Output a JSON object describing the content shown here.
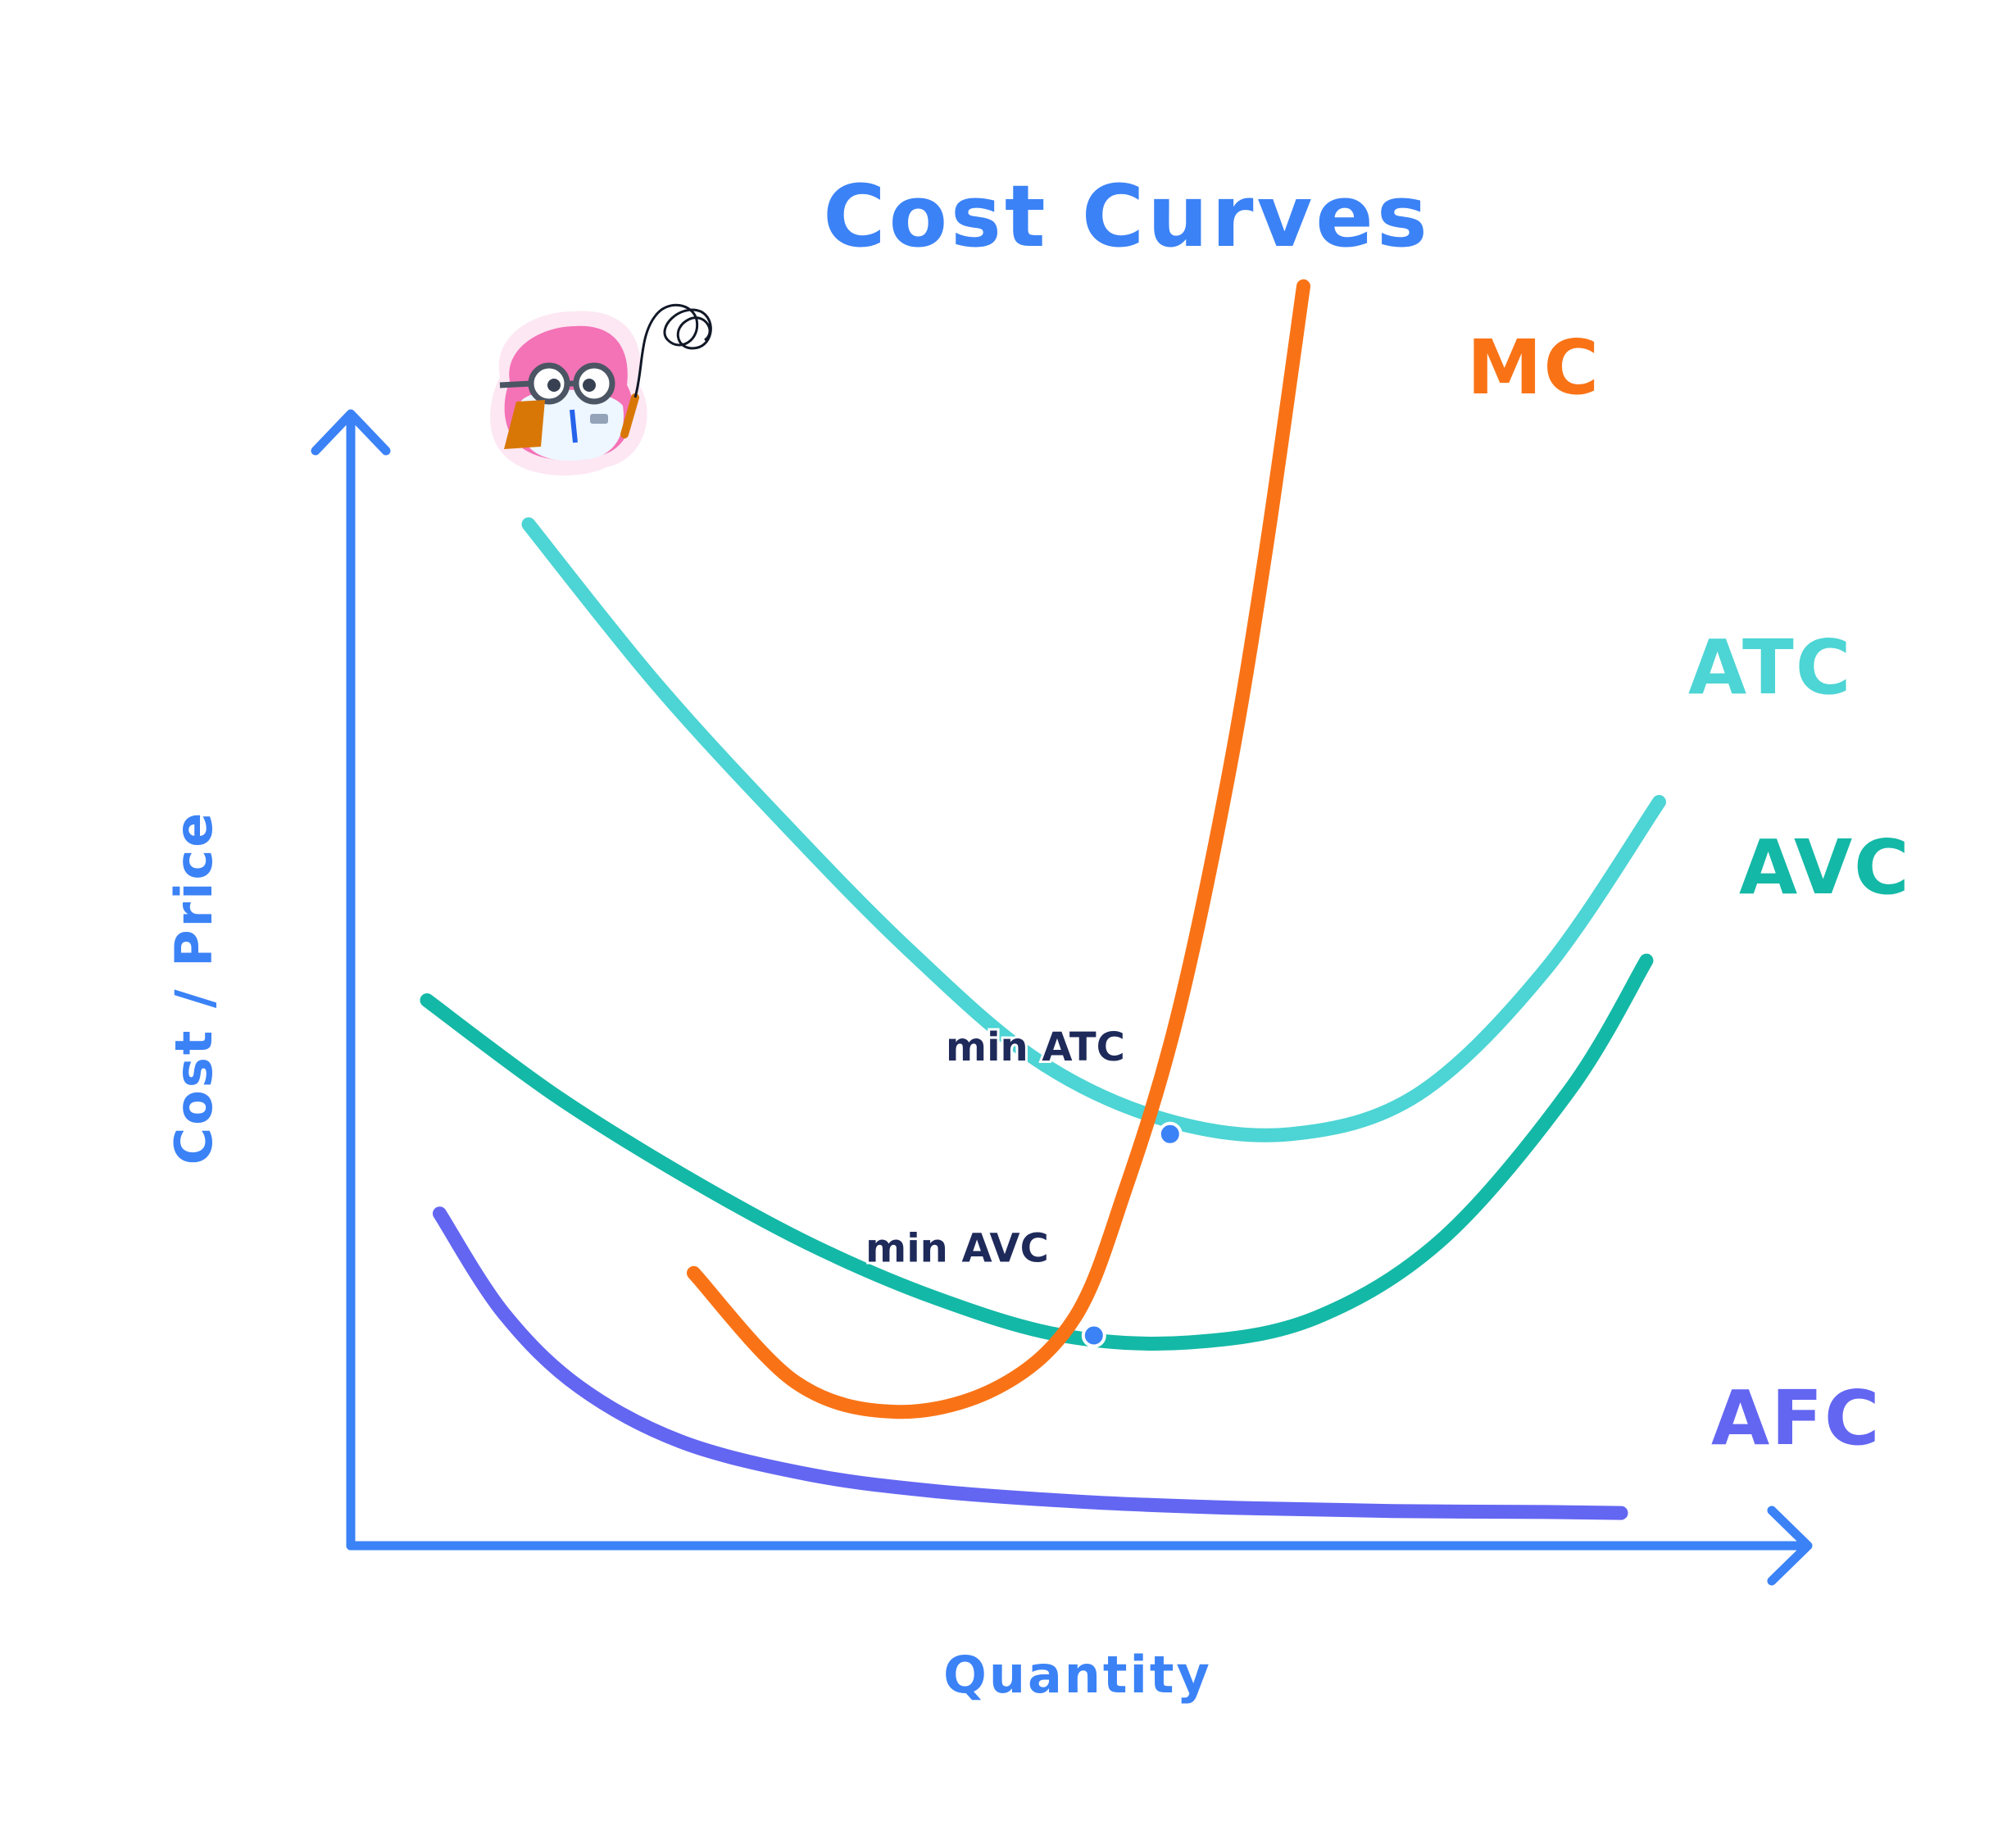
{
  "chart_data": {
    "type": "line",
    "title": "Cost Curves",
    "xlabel": "Quantity",
    "ylabel": "Cost / Price",
    "xlim": [
      0,
      10
    ],
    "ylim": [
      0,
      10
    ],
    "grid": false,
    "legend": "none",
    "colors": {
      "axis": "#3b82f6",
      "title": "#3b82f6",
      "annotation": "#1e2a5a",
      "point": "#3b82f6"
    },
    "series": [
      {
        "name": "MC",
        "color": "#f97316",
        "x": [
          2.7,
          3.5,
          4.3,
          5.1,
          5.7,
          6.1,
          6.5,
          6.9,
          7.2,
          7.5
        ],
        "y": [
          2.75,
          1.65,
          1.35,
          1.6,
          2.3,
          3.6,
          5.3,
          7.7,
          10.0,
          12.7
        ]
      },
      {
        "name": "ATC",
        "color": "#4dd4d4",
        "x": [
          1.4,
          2.4,
          3.4,
          4.4,
          5.4,
          6.4,
          7.4,
          8.4,
          9.4,
          10.3
        ],
        "y": [
          10.3,
          8.7,
          7.3,
          6.0,
          4.9,
          4.3,
          4.15,
          4.55,
          5.8,
          7.5
        ]
      },
      {
        "name": "AVC",
        "color": "#14b8a6",
        "x": [
          0.6,
          1.6,
          2.6,
          3.6,
          4.6,
          5.6,
          6.6,
          7.6,
          8.6,
          9.6,
          10.2
        ],
        "y": [
          5.5,
          4.55,
          3.75,
          3.05,
          2.5,
          2.12,
          2.05,
          2.3,
          3.1,
          4.6,
          5.9
        ]
      },
      {
        "name": "AFC",
        "color": "#6366f1",
        "x": [
          0.7,
          1.2,
          1.8,
          2.6,
          3.6,
          4.6,
          5.8,
          7.0,
          8.2,
          9.4,
          10.0
        ],
        "y": [
          3.35,
          2.35,
          1.6,
          1.05,
          0.72,
          0.55,
          0.44,
          0.38,
          0.35,
          0.34,
          0.33
        ]
      }
    ],
    "annotations": [
      {
        "text": "min ATC",
        "x": 6.45,
        "y": 4.15,
        "label_offset": "upper-left"
      },
      {
        "text": "min AVC",
        "x": 5.85,
        "y": 2.12,
        "label_offset": "upper-left"
      }
    ]
  },
  "mascot": {
    "icon": "owl-scientist-mascot-icon",
    "colors": {
      "body": "#f472b6",
      "coat": "#e5f3ff",
      "clipboard": "#d97706"
    }
  }
}
